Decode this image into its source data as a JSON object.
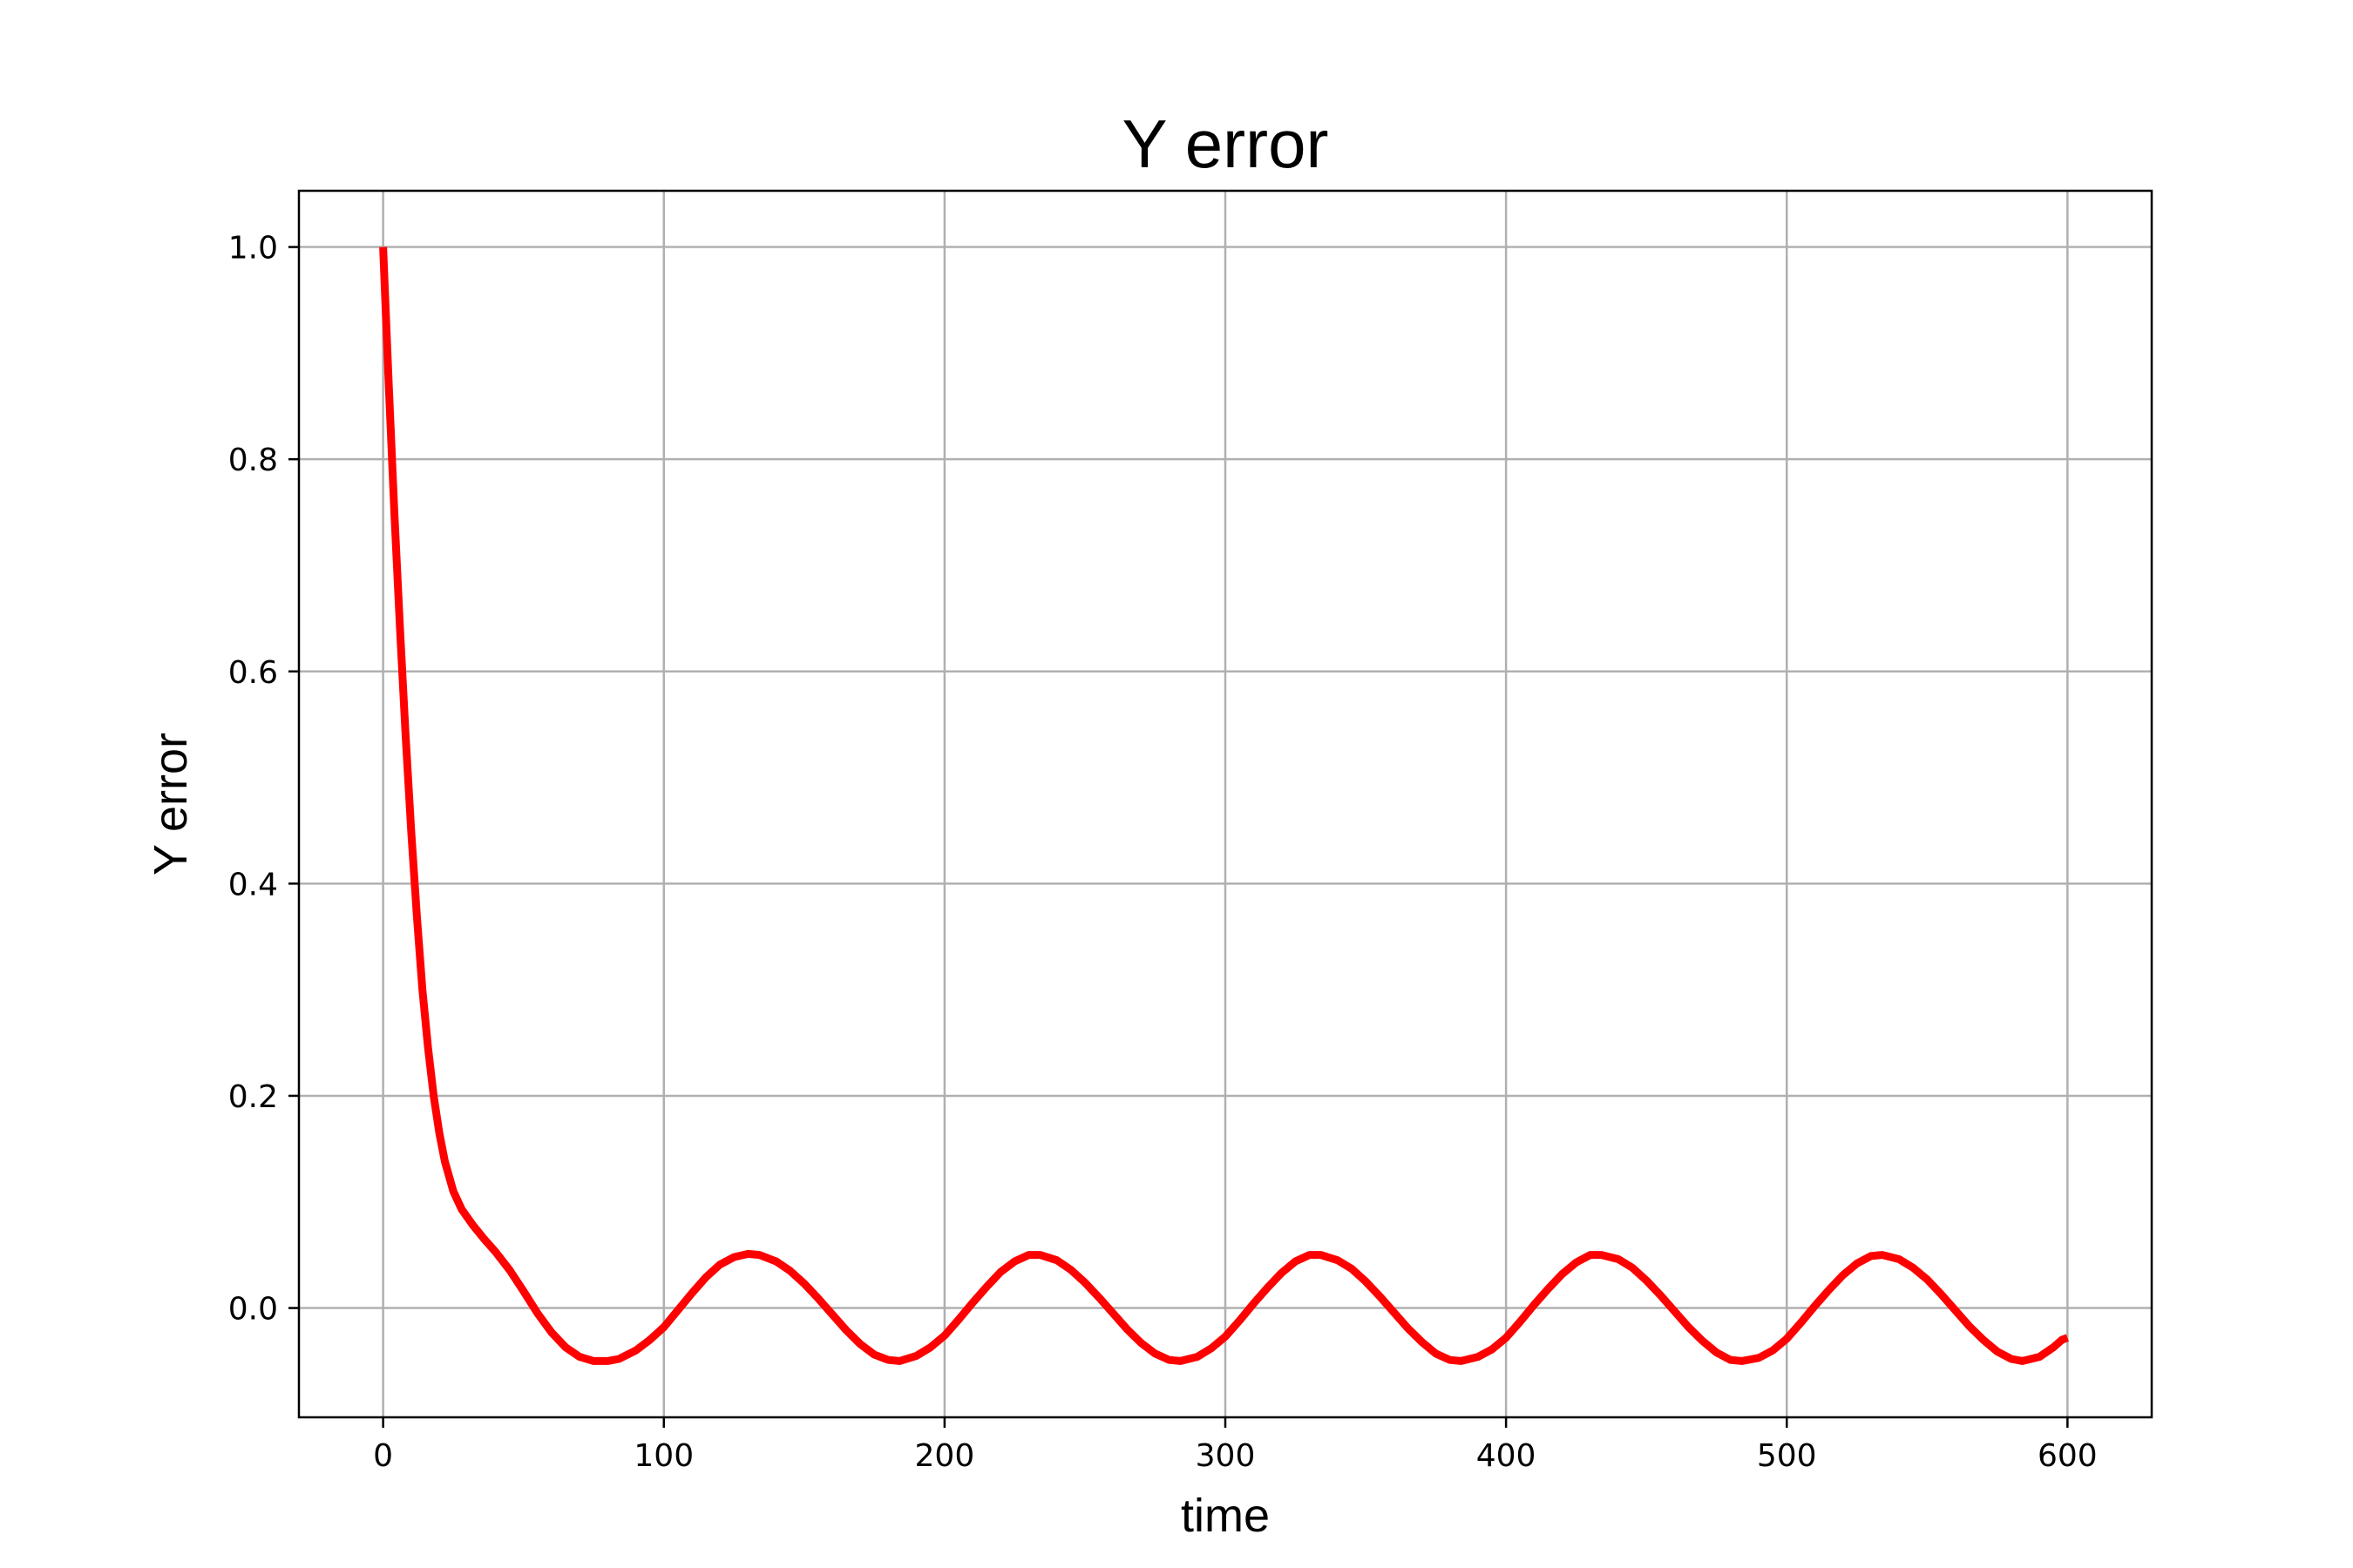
{
  "chart_data": {
    "type": "line",
    "title": "Y error",
    "xlabel": "time",
    "ylabel": "Y error",
    "xlim": [
      -30,
      630
    ],
    "ylim": [
      -0.103,
      1.053
    ],
    "xticks": [
      0,
      100,
      200,
      300,
      400,
      500,
      600
    ],
    "yticks": [
      0.0,
      0.2,
      0.4,
      0.6,
      0.8,
      1.0
    ],
    "xtick_labels": [
      "0",
      "100",
      "200",
      "300",
      "400",
      "500",
      "600"
    ],
    "ytick_labels": [
      "0.0",
      "0.2",
      "0.4",
      "0.6",
      "0.8",
      "1.0"
    ],
    "grid": true,
    "series": [
      {
        "color": "#ff0000",
        "x": [
          0,
          2,
          4,
          6,
          8,
          10,
          12,
          14,
          16,
          18,
          20,
          22,
          25,
          28,
          32,
          36,
          40,
          45,
          50,
          55,
          60,
          65,
          70,
          75,
          80,
          84,
          90,
          95,
          100,
          105,
          110,
          115,
          120,
          125,
          130,
          134,
          140,
          145,
          150,
          155,
          160,
          165,
          170,
          175,
          180,
          184,
          190,
          195,
          200,
          205,
          210,
          215,
          220,
          225,
          230,
          234,
          240,
          245,
          250,
          255,
          260,
          265,
          270,
          275,
          280,
          284,
          290,
          295,
          300,
          305,
          310,
          315,
          320,
          325,
          330,
          334,
          340,
          345,
          350,
          355,
          360,
          365,
          370,
          375,
          380,
          384,
          390,
          395,
          400,
          405,
          410,
          415,
          420,
          425,
          430,
          434,
          440,
          445,
          450,
          455,
          460,
          465,
          470,
          475,
          480,
          484,
          490,
          495,
          500,
          505,
          510,
          515,
          520,
          525,
          530,
          534,
          540,
          545,
          550,
          555,
          560,
          565,
          570,
          575,
          580,
          584,
          590,
          595,
          598,
          600
        ],
        "y": [
          1.0,
          0.87,
          0.75,
          0.64,
          0.54,
          0.45,
          0.37,
          0.3,
          0.245,
          0.2,
          0.165,
          0.138,
          0.11,
          0.093,
          0.078,
          0.065,
          0.053,
          0.036,
          0.016,
          -0.005,
          -0.023,
          -0.037,
          -0.046,
          -0.05,
          -0.05,
          -0.048,
          -0.04,
          -0.03,
          -0.018,
          -0.002,
          0.014,
          0.029,
          0.041,
          0.048,
          0.051,
          0.05,
          0.044,
          0.035,
          0.023,
          0.009,
          -0.006,
          -0.021,
          -0.034,
          -0.044,
          -0.049,
          -0.05,
          -0.045,
          -0.037,
          -0.026,
          -0.011,
          0.005,
          0.02,
          0.034,
          0.044,
          0.05,
          0.05,
          0.045,
          0.036,
          0.024,
          0.01,
          -0.005,
          -0.02,
          -0.033,
          -0.043,
          -0.049,
          -0.05,
          -0.046,
          -0.038,
          -0.027,
          -0.012,
          0.004,
          0.019,
          0.033,
          0.044,
          0.05,
          0.05,
          0.045,
          0.037,
          0.025,
          0.011,
          -0.004,
          -0.019,
          -0.032,
          -0.043,
          -0.049,
          -0.05,
          -0.046,
          -0.039,
          -0.028,
          -0.013,
          0.003,
          0.018,
          0.032,
          0.043,
          0.05,
          0.05,
          0.046,
          0.038,
          0.026,
          0.012,
          -0.003,
          -0.018,
          -0.031,
          -0.042,
          -0.049,
          -0.05,
          -0.047,
          -0.04,
          -0.029,
          -0.014,
          0.002,
          0.017,
          0.031,
          0.042,
          0.049,
          0.05,
          0.046,
          0.038,
          0.027,
          0.013,
          -0.002,
          -0.017,
          -0.03,
          -0.041,
          -0.048,
          -0.05,
          -0.046,
          -0.037,
          -0.03,
          -0.028
        ]
      }
    ]
  }
}
